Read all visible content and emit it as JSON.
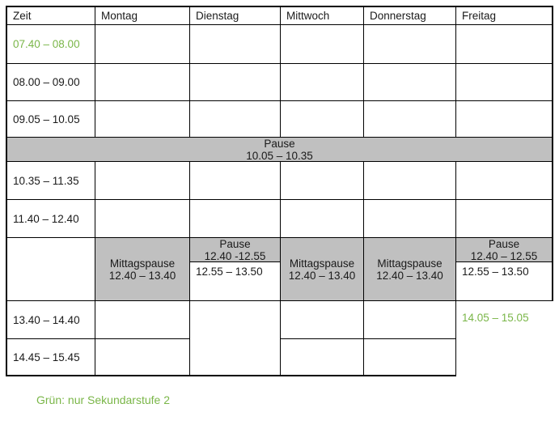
{
  "header": {
    "columns": [
      "Zeit",
      "Montag",
      "Dienstag",
      "Mittwoch",
      "Donnerstag",
      "Freitag"
    ]
  },
  "time_rows": {
    "r1": "07.40 – 08.00",
    "r2": "08.00 – 09.00",
    "r3": "09.05 – 10.05",
    "r4": "10.35 – 11.35",
    "r5": "11.40 – 12.40",
    "r7": "13.40 – 14.40",
    "r8": "14.45 – 15.45"
  },
  "pause_band": {
    "line1": "Pause",
    "line2": "10.05 – 10.35"
  },
  "mittagspause": {
    "line1": "Mittagspause",
    "line2": "12.40 – 13.40"
  },
  "dienstag_midday": {
    "pause_line1": "Pause",
    "pause_line2": "12.40 -12.55",
    "after_pause": "12.55 – 13.50"
  },
  "freitag_midday": {
    "pause_line1": "Pause",
    "pause_line2": "12.40 – 12.55",
    "after_pause": "12.55 – 13.50"
  },
  "freitag_extra": "14.05 – 15.05",
  "legend": "Grün: nur Sekundarstufe 2",
  "colors": {
    "green": "#7ab648",
    "gray": "#c0c0c0"
  }
}
